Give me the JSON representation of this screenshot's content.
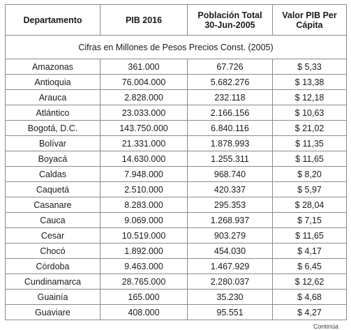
{
  "table": {
    "headers": [
      "Departamento",
      "PIB 2016",
      "Población Total\n30-Jun-2005",
      "Valor PIB Per\nCápita"
    ],
    "subheader": "Cifras en Millones de Pesos Precios Const. (2005)",
    "rows": [
      [
        "Amazonas",
        "361.000",
        "67.726",
        "$ 5,33"
      ],
      [
        "Antioquia",
        "76.004.000",
        "5.682.276",
        "$ 13,38"
      ],
      [
        "Arauca",
        "2.828.000",
        "232.118",
        "$ 12,18"
      ],
      [
        "Atlántico",
        "23.033.000",
        "2.166.156",
        "$ 10,63"
      ],
      [
        "Bogotá, D.C.",
        "143.750.000",
        "6.840.116",
        "$ 21,02"
      ],
      [
        "Bolívar",
        "21.331.000",
        "1.878.993",
        "$ 11,35"
      ],
      [
        "Boyacá",
        "14.630.000",
        "1.255.311",
        "$ 11,65"
      ],
      [
        "Caldas",
        "7.948.000",
        "968.740",
        "$ 8,20"
      ],
      [
        "Caquetá",
        "2.510.000",
        "420.337",
        "$ 5,97"
      ],
      [
        "Casanare",
        "8.283.000",
        "295.353",
        "$ 28,04"
      ],
      [
        "Cauca",
        "9.069.000",
        "1.268.937",
        "$ 7,15"
      ],
      [
        "Cesar",
        "10.519.000",
        "903.279",
        "$ 11,65"
      ],
      [
        "Chocó",
        "1.892.000",
        "454.030",
        "$ 4,17"
      ],
      [
        "Córdoba",
        "9.463.000",
        "1.467.929",
        "$ 6,45"
      ],
      [
        "Cundinamarca",
        "28.765.000",
        "2.280.037",
        "$ 12,62"
      ],
      [
        "Guainía",
        "165.000",
        "35.230",
        "$ 4,68"
      ],
      [
        "Guaviare",
        "408.000",
        "95.551",
        "$ 4,27"
      ]
    ]
  },
  "footer_note": "Continúa"
}
